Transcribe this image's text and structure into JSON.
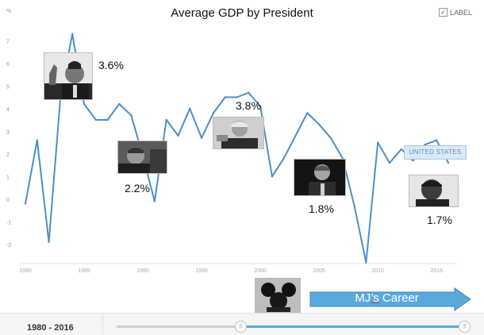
{
  "chart_data": {
    "type": "line",
    "title": "Average GDP by President",
    "ylabel": "%",
    "xlim": [
      1980,
      2016
    ],
    "ylim": [
      -2.5,
      7.5
    ],
    "x_ticks": [
      1980,
      1985,
      1990,
      1995,
      2000,
      2005,
      2010,
      2015
    ],
    "y_ticks": [
      -2,
      -1,
      0,
      1,
      2,
      3,
      4,
      5,
      6,
      7
    ],
    "grid": false,
    "line_color": "#4d8fc6",
    "x": [
      1980,
      1981,
      1982,
      1983,
      1984,
      1985,
      1986,
      1987,
      1988,
      1989,
      1990,
      1991,
      1992,
      1993,
      1994,
      1995,
      1996,
      1997,
      1998,
      1999,
      2000,
      2001,
      2002,
      2003,
      2004,
      2005,
      2006,
      2007,
      2008,
      2009,
      2010,
      2011,
      2012,
      2013,
      2014,
      2015,
      2016
    ],
    "values": [
      -0.2,
      2.6,
      -1.9,
      4.6,
      7.3,
      4.2,
      3.5,
      3.5,
      4.2,
      3.7,
      1.9,
      -0.1,
      3.5,
      2.8,
      4.0,
      2.7,
      3.8,
      4.5,
      4.5,
      4.7,
      4.1,
      1.0,
      1.8,
      2.8,
      3.8,
      3.3,
      2.7,
      1.8,
      -0.3,
      -2.8,
      2.5,
      1.6,
      2.2,
      1.7,
      2.4,
      2.6,
      1.6
    ],
    "series_label": "UNITED STATES",
    "annotations": [
      "3.6%",
      "2.2%",
      "3.8%",
      "1.8%",
      "1.7%"
    ]
  },
  "label_toggle": {
    "checked": true,
    "text": "LABEL",
    "check_glyph": "✓"
  },
  "career_arrow": {
    "text_pre": "MJ",
    "text_underlined": "’s",
    "text_post": " Career",
    "color": "#5aa9dc"
  },
  "range": {
    "label": "1980 - 2016"
  },
  "slider": {
    "handle_glyph": "|||"
  }
}
